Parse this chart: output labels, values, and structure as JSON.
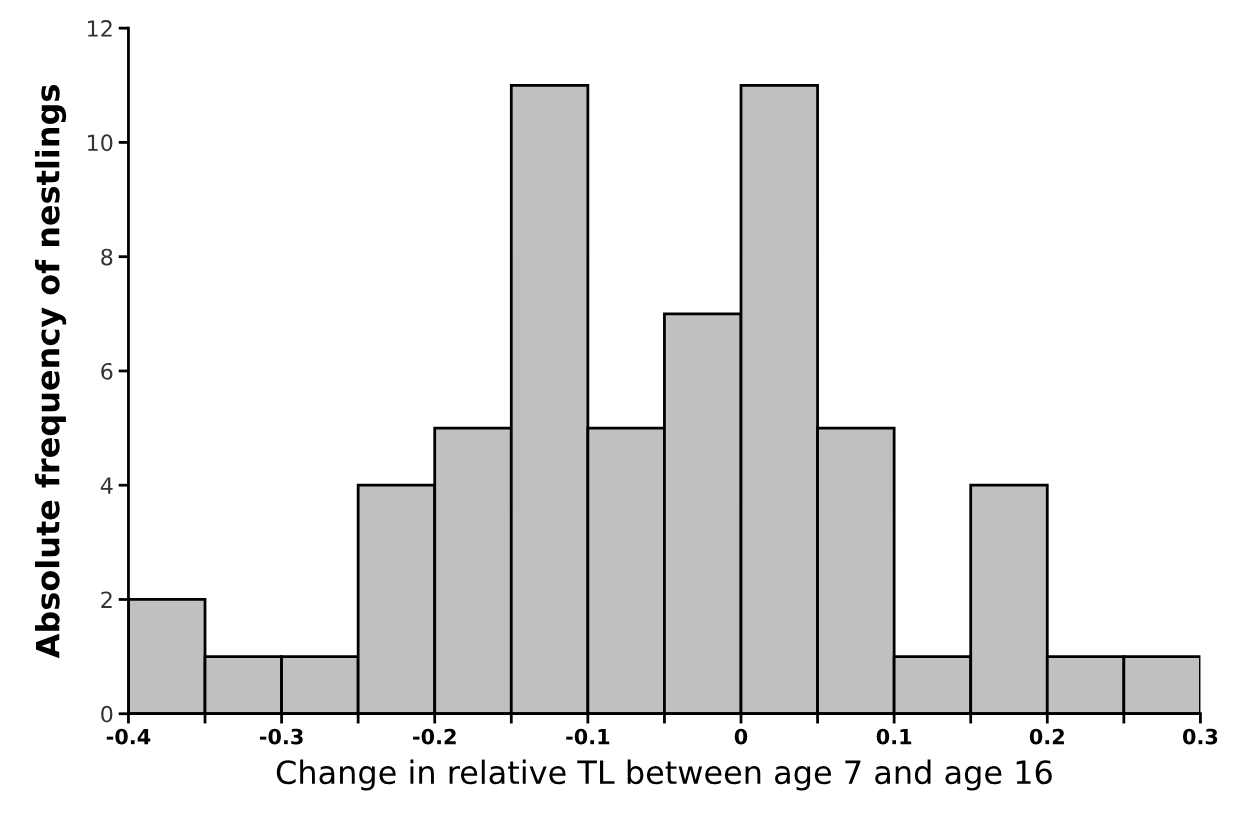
{
  "chart_data": {
    "type": "histogram",
    "xlabel": "Change in relative TL between age 7 and age 16",
    "ylabel": "Absolute frequency of nestlings",
    "bins": [
      -0.4,
      -0.35,
      -0.3,
      -0.25,
      -0.2,
      -0.15,
      -0.1,
      -0.05,
      0,
      0.05,
      0.1,
      0.15,
      0.2,
      0.25,
      0.3
    ],
    "values": [
      2,
      1,
      1,
      4,
      5,
      11,
      5,
      7,
      11,
      5,
      1,
      4,
      1,
      1
    ],
    "color": "#c0c0c0",
    "xlim": [
      -0.4,
      0.3
    ],
    "xticks": [
      {
        "value": -0.4,
        "label": "-0.4"
      },
      {
        "value": -0.35,
        "label": null
      },
      {
        "value": -0.3,
        "label": "-0.3"
      },
      {
        "value": -0.25,
        "label": null
      },
      {
        "value": -0.2,
        "label": "-0.2"
      },
      {
        "value": -0.15,
        "label": null
      },
      {
        "value": -0.1,
        "label": "-0.1"
      },
      {
        "value": -0.05,
        "label": null
      },
      0,
      {
        "value": 0.05,
        "label": null
      },
      0.1,
      {
        "value": 0.15,
        "label": null
      },
      0.2,
      {
        "value": 0.25,
        "label": null
      },
      0.3
    ],
    "ylim": [
      0,
      12
    ],
    "yticks": [
      0,
      2,
      4,
      6,
      8,
      10,
      12
    ],
    "grid": false
  }
}
